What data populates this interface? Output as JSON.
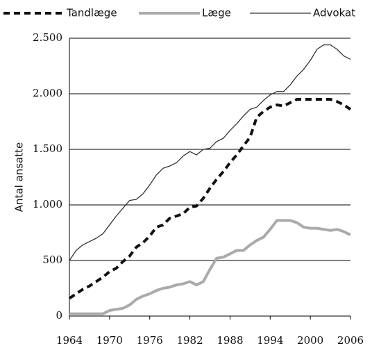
{
  "chart_data": {
    "type": "line",
    "y_label": "Antal ansatte",
    "x": [
      1964,
      1965,
      1966,
      1967,
      1968,
      1969,
      1970,
      1971,
      1972,
      1973,
      1974,
      1975,
      1976,
      1977,
      1978,
      1979,
      1980,
      1981,
      1982,
      1983,
      1984,
      1985,
      1986,
      1987,
      1988,
      1989,
      1990,
      1991,
      1992,
      1993,
      1994,
      1995,
      1996,
      1997,
      1998,
      1999,
      2000,
      2001,
      2002,
      2003,
      2004,
      2005,
      2006
    ],
    "series": [
      {
        "name": "Tandlæge",
        "color": "#111111",
        "values": [
          160,
          200,
          240,
          270,
          310,
          350,
          400,
          430,
          490,
          540,
          620,
          660,
          720,
          800,
          820,
          880,
          900,
          920,
          980,
          990,
          1060,
          1150,
          1230,
          1300,
          1380,
          1450,
          1530,
          1610,
          1790,
          1840,
          1880,
          1900,
          1890,
          1920,
          1950,
          1950,
          1950,
          1950,
          1950,
          1950,
          1930,
          1900,
          1860
        ]
      },
      {
        "name": "Læge",
        "color": "#aaaaaa",
        "values": [
          20,
          20,
          20,
          20,
          20,
          20,
          50,
          60,
          70,
          100,
          150,
          180,
          200,
          230,
          250,
          260,
          280,
          290,
          310,
          280,
          310,
          420,
          520,
          530,
          560,
          590,
          590,
          640,
          680,
          710,
          780,
          860,
          860,
          860,
          840,
          800,
          790,
          790,
          780,
          770,
          780,
          760,
          730
        ]
      },
      {
        "name": "Advokat",
        "color": "#333333",
        "values": [
          500,
          590,
          640,
          670,
          700,
          740,
          820,
          900,
          970,
          1040,
          1050,
          1100,
          1180,
          1270,
          1330,
          1350,
          1380,
          1440,
          1480,
          1450,
          1500,
          1510,
          1570,
          1600,
          1670,
          1730,
          1800,
          1860,
          1880,
          1940,
          1990,
          2020,
          2020,
          2080,
          2160,
          2220,
          2300,
          2400,
          2440,
          2440,
          2400,
          2340,
          2310
        ]
      }
    ],
    "xlim": [
      1964,
      2006
    ],
    "xticks": [
      1964,
      1970,
      1976,
      1982,
      1988,
      1994,
      2000,
      2006
    ],
    "ylim": [
      0,
      2500
    ],
    "yticks": [
      0,
      500,
      {
        "value": 1000,
        "label": "1.000"
      },
      {
        "value": 1500,
        "label": "1.500"
      },
      {
        "value": 2000,
        "label": "2.000"
      },
      {
        "value": 2500,
        "label": "2.500"
      }
    ],
    "grid": true
  }
}
